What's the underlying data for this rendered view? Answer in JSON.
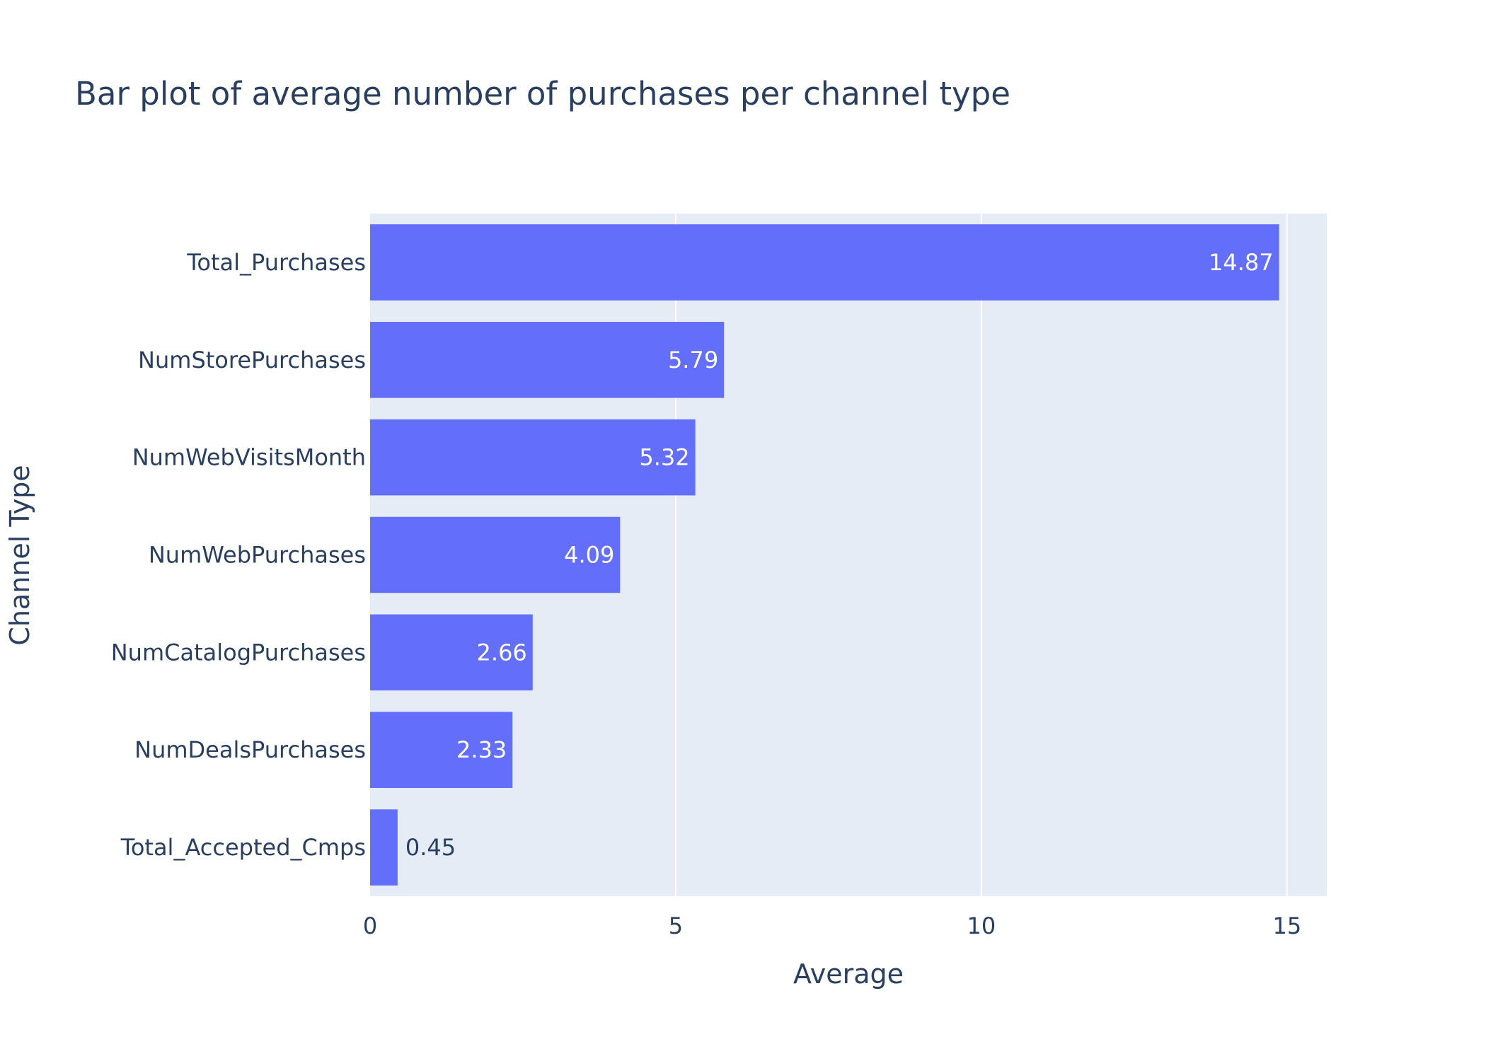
{
  "chart_data": {
    "type": "bar",
    "orientation": "horizontal",
    "title": "Bar plot of average number of purchases per channel type",
    "xlabel": "Average",
    "ylabel": "Channel Type",
    "categories": [
      "Total_Purchases",
      "NumStorePurchases",
      "NumWebVisitsMonth",
      "NumWebPurchases",
      "NumCatalogPurchases",
      "NumDealsPurchases",
      "Total_Accepted_Cmps"
    ],
    "values": [
      14.87,
      5.79,
      5.32,
      4.09,
      2.66,
      2.33,
      0.45
    ],
    "value_labels": [
      "14.87",
      "5.79",
      "5.32",
      "4.09",
      "2.66",
      "2.33",
      "0.45"
    ],
    "xlim": [
      0,
      15.65
    ],
    "xticks": [
      0,
      5,
      10,
      15
    ],
    "xtick_labels": [
      "0",
      "5",
      "10",
      "15"
    ],
    "grid": true,
    "colors": {
      "bar": "#636efa",
      "plot_background": "#e5ecf6",
      "grid": "#ffffff",
      "text": "#2a3f5f",
      "inside_label": "#ffffff"
    }
  }
}
